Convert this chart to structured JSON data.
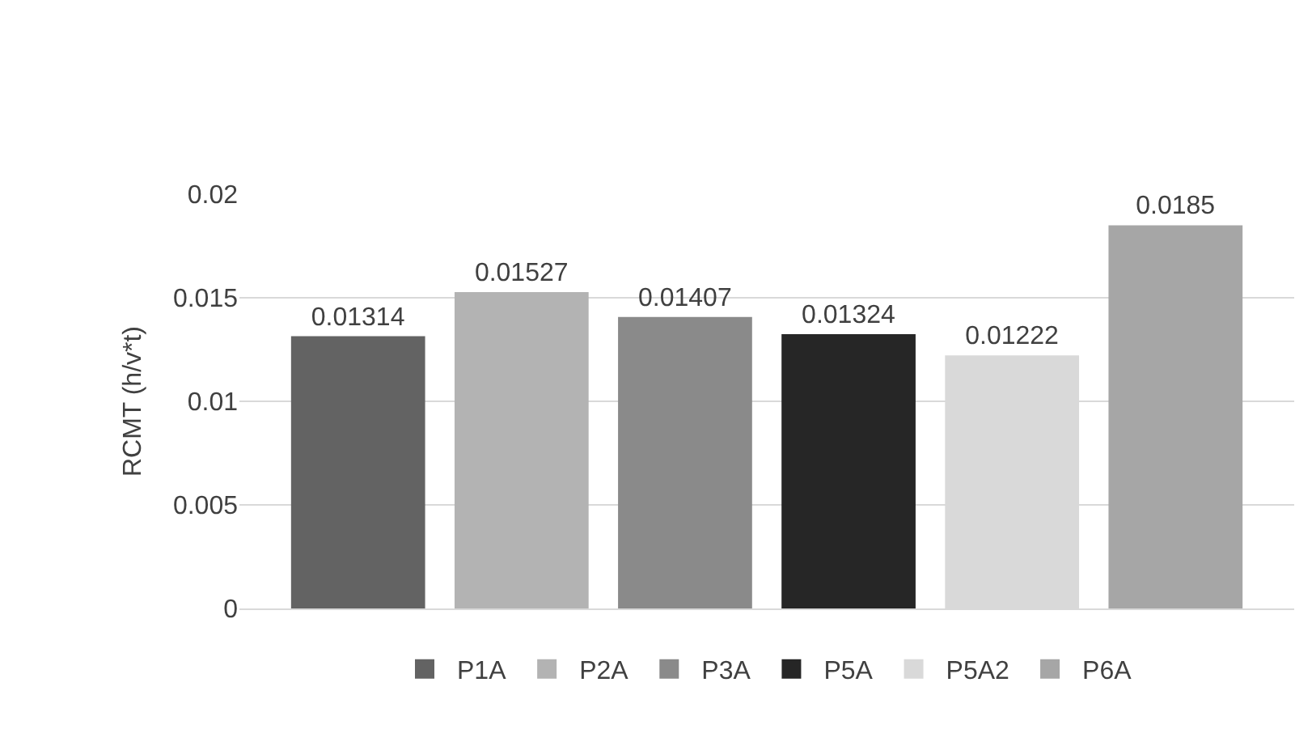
{
  "chart_data": {
    "type": "bar",
    "ylabel": "RCMT (h/v*t)",
    "categories": [
      null
    ],
    "series": [
      {
        "name": "P1A",
        "color": "#636363",
        "values": [
          0.01314
        ]
      },
      {
        "name": "P2A",
        "color": "#b3b3b3",
        "values": [
          0.01527
        ]
      },
      {
        "name": "P3A",
        "color": "#8a8a8a",
        "values": [
          0.01407
        ]
      },
      {
        "name": "P5A",
        "color": "#262626",
        "values": [
          0.01324
        ]
      },
      {
        "name": "P5A2",
        "color": "#d9d9d9",
        "values": [
          0.01222
        ]
      },
      {
        "name": "P6A",
        "color": "#a6a6a6",
        "values": [
          0.0185
        ]
      }
    ],
    "ylim": [
      0,
      0.02
    ],
    "yticks": [
      0,
      0.005,
      0.01,
      0.015,
      0.02
    ],
    "grid": "y",
    "legend": "bottom",
    "data_labels": true,
    "tick_labels": "y"
  }
}
